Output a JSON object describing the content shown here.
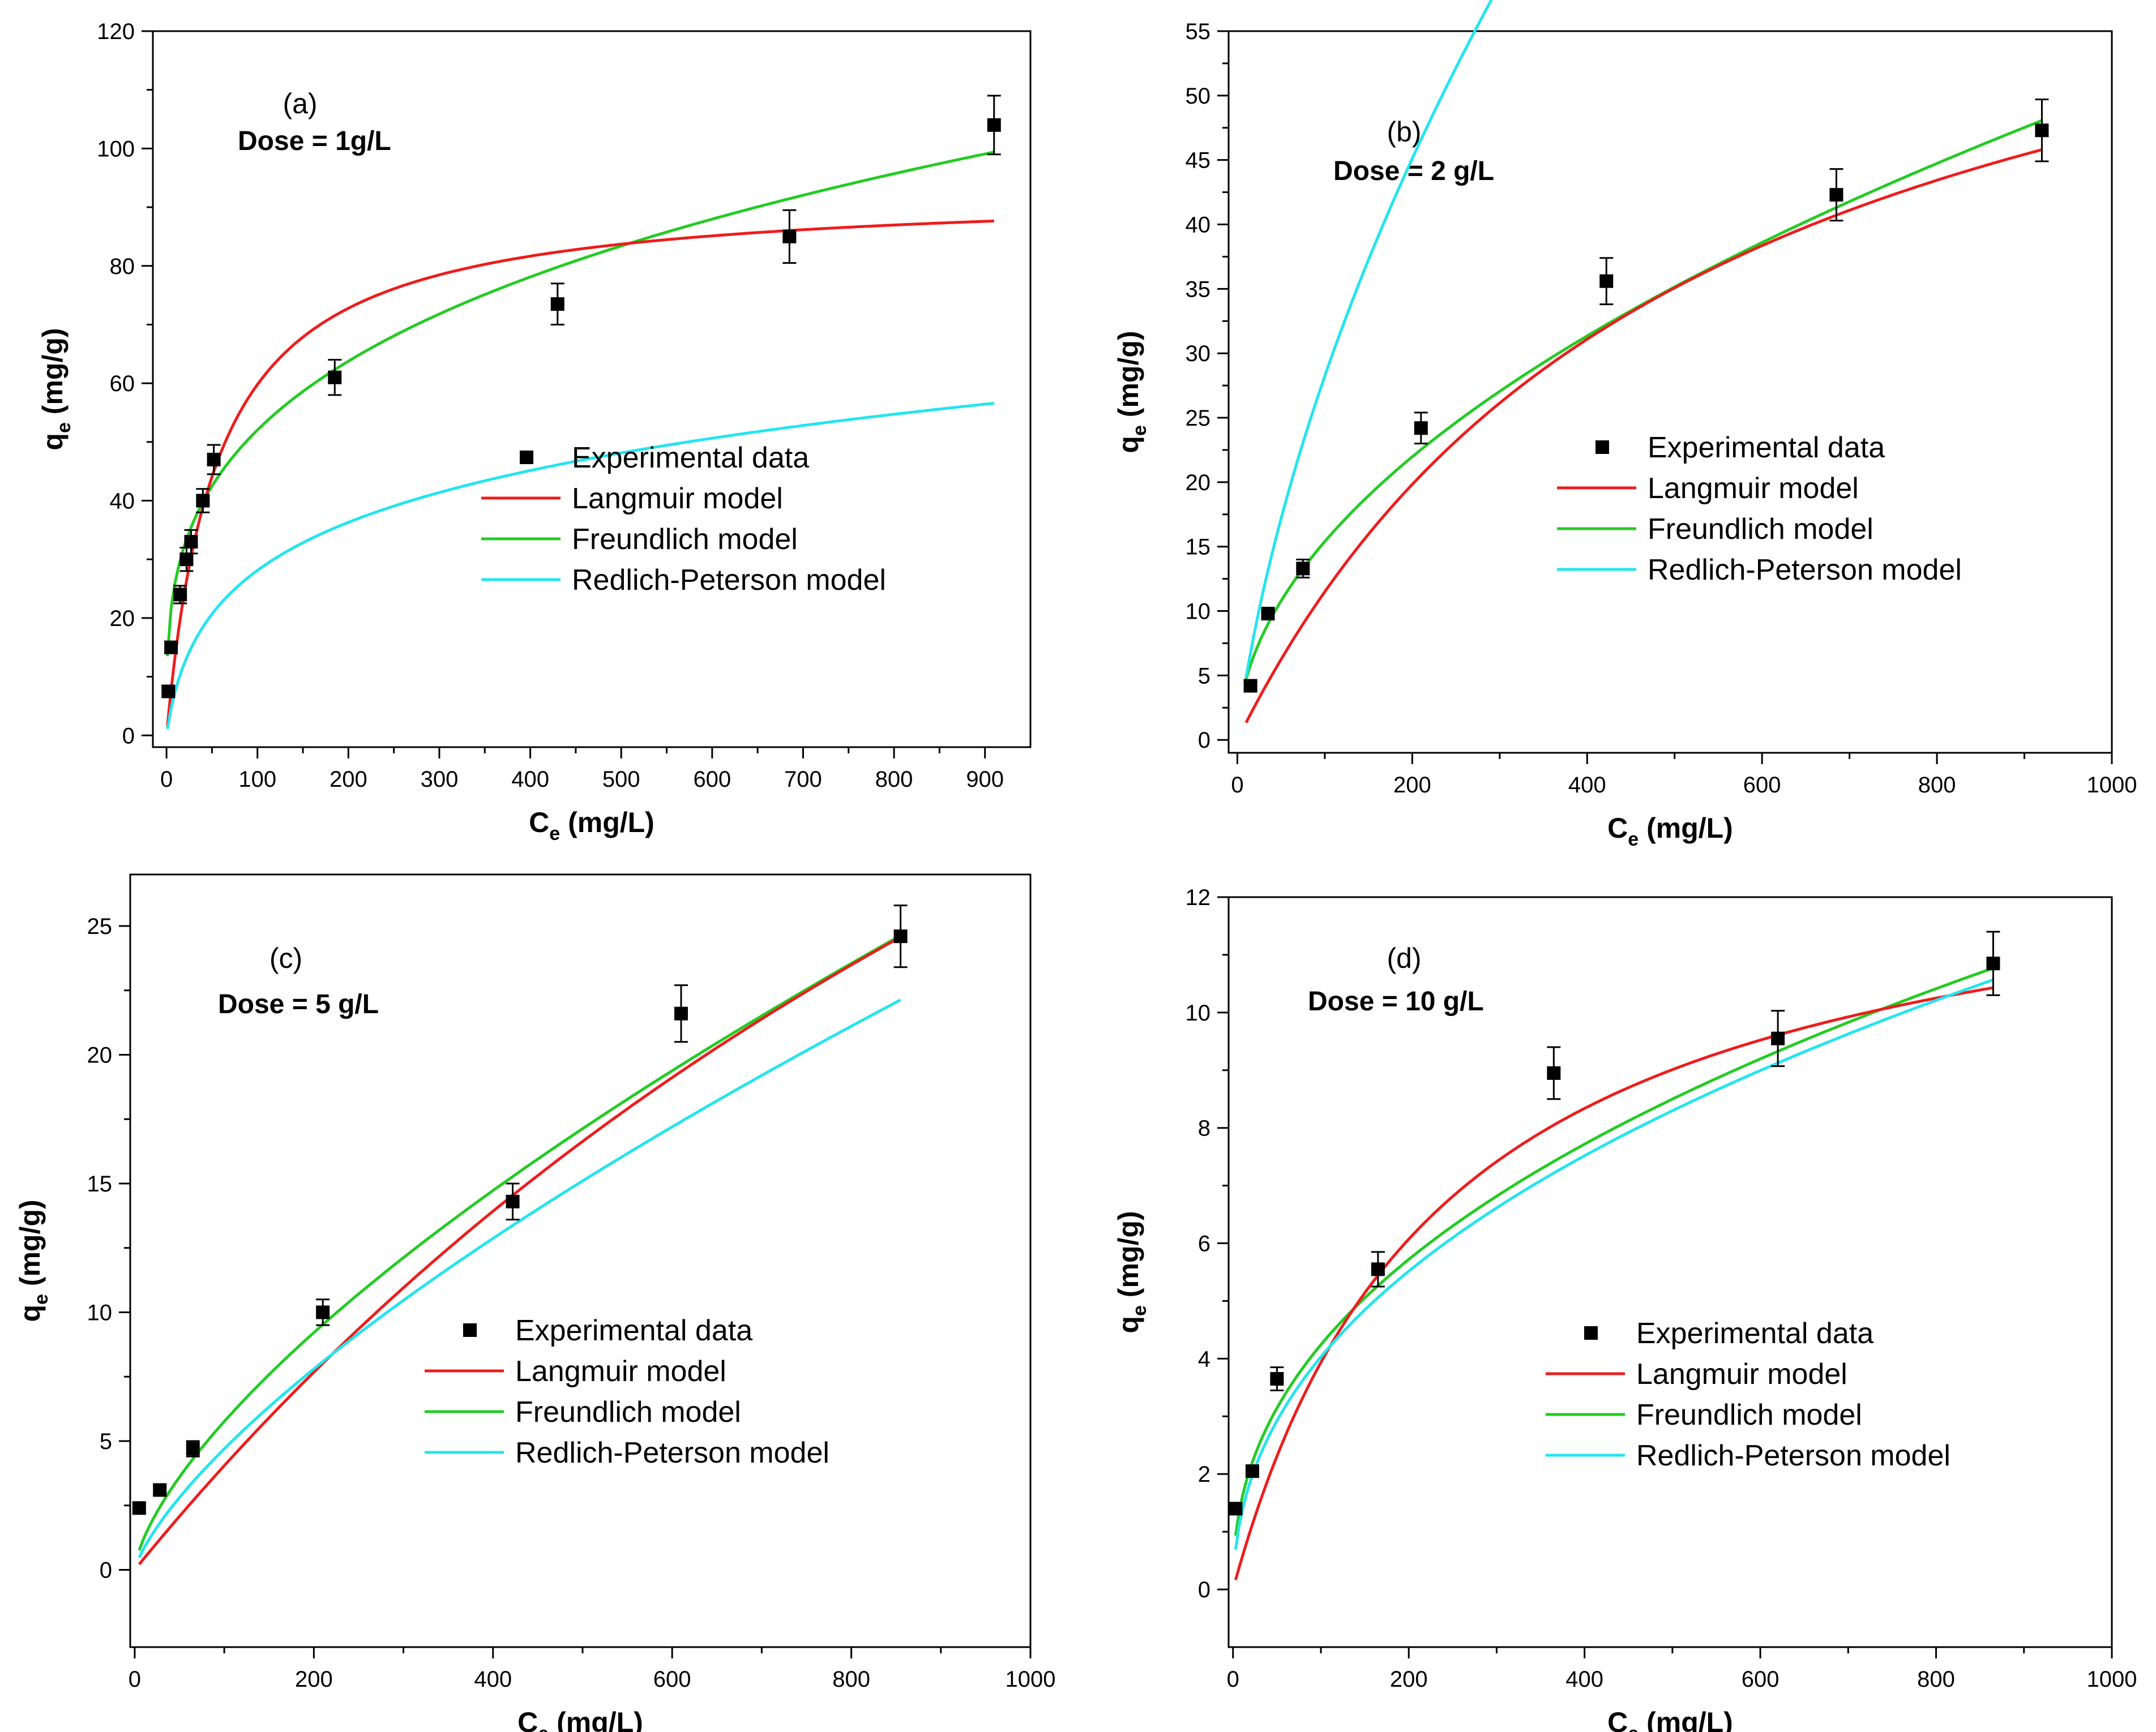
{
  "colors": {
    "langmuir": "#ee1c1c",
    "freundlich": "#22cc22",
    "redlich": "#22e5ee",
    "points": "#000000",
    "axes": "#000000"
  },
  "legend": {
    "experimental": "Experimental data",
    "langmuir": "Langmuir model",
    "freundlich": "Freundlich model",
    "redlich": "Redlich-Peterson model"
  },
  "chart_data": [
    {
      "type": "scatter",
      "panel": "(a)",
      "dose": "Dose = 1g/L",
      "xlabel_main": "C",
      "xlabel_sub": "e",
      "xlabel_unit": " (mg/L)",
      "ylabel_main": "q",
      "ylabel_sub": "e",
      "ylabel_unit": " (mg/g)",
      "xlim": [
        -15,
        950
      ],
      "ylim": [
        -2,
        120
      ],
      "xticks": [
        0,
        100,
        200,
        300,
        400,
        500,
        600,
        700,
        800,
        900
      ],
      "yticks": [
        0,
        20,
        40,
        60,
        80,
        100,
        120
      ],
      "xtick_labels": [
        "0",
        "100",
        "200",
        "300",
        "400",
        "500",
        "600",
        "700",
        "800",
        "900"
      ],
      "ytick_labels": [
        "0",
        "20",
        "40",
        "60",
        "80",
        "100",
        "120"
      ],
      "experimental": {
        "x": [
          2,
          5,
          15,
          22,
          27,
          40,
          52,
          185,
          430,
          685,
          910
        ],
        "y": [
          7.5,
          15,
          24,
          30,
          33,
          40,
          47,
          61,
          73.5,
          85,
          104
        ],
        "err": [
          0.8,
          1,
          1.5,
          2,
          2,
          2,
          2.5,
          3,
          3.5,
          4.5,
          5
        ]
      },
      "models": {
        "langmuir": {
          "type": "langmuir",
          "qmax": 93,
          "K": 0.018,
          "xmin": 1,
          "xmax": 910
        },
        "freundlich": {
          "type": "freundlich",
          "Kf": 13.5,
          "n": 0.293,
          "xmin": 1,
          "xmax": 910
        },
        "redlich": {
          "type": "redlich",
          "A": 1.2,
          "B": 0.09,
          "beta": 0.78,
          "xmin": 1,
          "xmax": 910
        }
      }
    },
    {
      "type": "scatter",
      "panel": "(b)",
      "dose": "Dose = 2 g/L",
      "xlabel_main": "C",
      "xlabel_sub": "e",
      "xlabel_unit": " (mg/L)",
      "ylabel_main": "q",
      "ylabel_sub": "e",
      "ylabel_unit": " (mg/g)",
      "xlim": [
        -10,
        1000
      ],
      "ylim": [
        -1,
        55
      ],
      "xticks": [
        0,
        200,
        400,
        600,
        800,
        1000
      ],
      "yticks": [
        0,
        5,
        10,
        15,
        20,
        25,
        30,
        35,
        40,
        45,
        50,
        55
      ],
      "xtick_labels": [
        "0",
        "200",
        "400",
        "600",
        "800",
        "1000"
      ],
      "ytick_labels": [
        "0",
        "5",
        "10",
        "15",
        "20",
        "25",
        "30",
        "35",
        "40",
        "45",
        "50",
        "55"
      ],
      "experimental": {
        "x": [
          15,
          35,
          75,
          210,
          422,
          685,
          920
        ],
        "y": [
          4.2,
          9.8,
          13.3,
          24.2,
          35.6,
          42.3,
          47.3
        ],
        "err": [
          0.3,
          0.4,
          0.7,
          1.2,
          1.8,
          2,
          2.4
        ]
      },
      "models": {
        "langmuir": {
          "type": "langmuir",
          "qmax": 72,
          "K": 0.0019,
          "xmin": 10,
          "xmax": 920
        },
        "freundlich": {
          "type": "freundlich",
          "Kf": 1.45,
          "n": 0.513,
          "xmin": 10,
          "xmax": 920
        },
        "redlich": {
          "type": "redlich",
          "A": 0.72,
          "B": 0.155,
          "beta": 0.5,
          "xmin": 10,
          "xmax": 920
        }
      }
    },
    {
      "type": "scatter",
      "panel": "(c)",
      "dose": "Dose = 5 g/L",
      "xlabel_main": "C",
      "xlabel_sub": "e",
      "xlabel_unit": " (mg/L)",
      "ylabel_main": "q",
      "ylabel_sub": "e",
      "ylabel_unit": " (mg/g)",
      "xlim": [
        -5,
        1000
      ],
      "ylim": [
        -3,
        27
      ],
      "xticks": [
        0,
        200,
        400,
        600,
        800,
        1000
      ],
      "yticks": [
        0,
        5,
        10,
        15,
        20,
        25
      ],
      "xtick_labels": [
        "0",
        "200",
        "400",
        "600",
        "800",
        "1000"
      ],
      "ytick_labels": [
        "0",
        "5",
        "10",
        "15",
        "20",
        "25"
      ],
      "experimental": {
        "x": [
          5,
          28,
          65,
          210,
          422,
          610,
          855
        ],
        "y": [
          2.4,
          3.1,
          4.7,
          10,
          14.3,
          21.6,
          24.6
        ],
        "err": [
          0.2,
          0.2,
          0.3,
          0.5,
          0.7,
          1.1,
          1.2
        ]
      },
      "models": {
        "langmuir": {
          "type": "langmuir",
          "qmax": 75,
          "K": 0.00057,
          "xmin": 5,
          "xmax": 855
        },
        "freundlich": {
          "type": "freundlich",
          "Kf": 0.255,
          "n": 0.677,
          "xmin": 5,
          "xmax": 855
        },
        "redlich": {
          "type": "redlich",
          "A": 0.255,
          "B": 1,
          "beta": 0.323,
          "xmin": 5,
          "xmax": 855
        }
      }
    },
    {
      "type": "scatter",
      "panel": "(d)",
      "dose": "Dose = 10 g/L",
      "xlabel_main": "C",
      "xlabel_sub": "e",
      "xlabel_unit": " (mg/L)",
      "ylabel_main": "q",
      "ylabel_sub": "e",
      "ylabel_unit": " (mg/g)",
      "xlim": [
        -5,
        1000
      ],
      "ylim": [
        -1,
        12
      ],
      "xticks": [
        0,
        200,
        400,
        600,
        800,
        1000
      ],
      "yticks": [
        0,
        2,
        4,
        6,
        8,
        10,
        12
      ],
      "xtick_labels": [
        "0",
        "200",
        "400",
        "600",
        "800",
        "1000"
      ],
      "ytick_labels": [
        "0",
        "2",
        "4",
        "6",
        "8",
        "10",
        "12"
      ],
      "experimental": {
        "x": [
          3,
          22,
          50,
          165,
          365,
          620,
          865
        ],
        "y": [
          1.4,
          2.05,
          3.65,
          5.55,
          8.95,
          9.55,
          10.85
        ],
        "err": [
          0.1,
          0.1,
          0.2,
          0.3,
          0.45,
          0.48,
          0.55
        ]
      },
      "models": {
        "langmuir": {
          "type": "langmuir",
          "qmax": 13.3,
          "K": 0.0042,
          "xmin": 3,
          "xmax": 865
        },
        "freundlich": {
          "type": "freundlich",
          "Kf": 0.58,
          "n": 0.432,
          "xmin": 3,
          "xmax": 865
        },
        "redlich": {
          "type": "redlich",
          "A": 0.9,
          "B": 1.56,
          "beta": 0.568,
          "xmin": 3,
          "xmax": 865
        }
      }
    }
  ]
}
